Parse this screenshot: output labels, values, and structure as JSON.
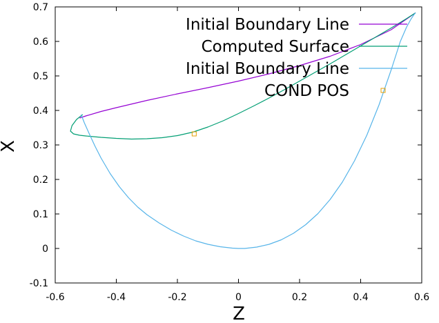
{
  "chart_data": {
    "type": "line",
    "xlabel": "Z",
    "ylabel": "X",
    "xlim": [
      -0.6,
      0.6
    ],
    "ylim": [
      -0.1,
      0.7
    ],
    "xticks": [
      "-0.6",
      "-0.4",
      "-0.2",
      "0",
      "0.2",
      "0.4",
      "0.6"
    ],
    "yticks": [
      "-0.1",
      "0",
      "0.1",
      "0.2",
      "0.3",
      "0.4",
      "0.5",
      "0.6",
      "0.7"
    ],
    "grid": false,
    "legend_position": "top-right",
    "series": [
      {
        "name": "Initial Boundary Line",
        "color": "#9400d3",
        "kind": "line",
        "x": [
          -0.52,
          -0.5,
          -0.45,
          -0.4,
          -0.3,
          -0.2,
          -0.1,
          0.0,
          0.1,
          0.2,
          0.3,
          0.4,
          0.5,
          0.58
        ],
        "y": [
          0.378,
          0.384,
          0.397,
          0.408,
          0.429,
          0.448,
          0.466,
          0.485,
          0.506,
          0.53,
          0.557,
          0.591,
          0.634,
          0.683
        ]
      },
      {
        "name": "Computed Surface",
        "color": "#009e73",
        "kind": "line",
        "x": [
          -0.51,
          -0.53,
          -0.545,
          -0.55,
          -0.54,
          -0.52,
          -0.5,
          -0.45,
          -0.4,
          -0.35,
          -0.3,
          -0.25,
          -0.2,
          -0.15,
          -0.1,
          -0.05,
          0.0,
          0.05,
          0.1,
          0.15,
          0.2,
          0.25,
          0.3,
          0.35,
          0.4,
          0.45,
          0.5,
          0.55,
          0.58
        ],
        "y": [
          0.388,
          0.374,
          0.356,
          0.34,
          0.332,
          0.328,
          0.326,
          0.322,
          0.319,
          0.317,
          0.318,
          0.321,
          0.327,
          0.337,
          0.352,
          0.37,
          0.391,
          0.413,
          0.436,
          0.46,
          0.485,
          0.51,
          0.535,
          0.561,
          0.587,
          0.613,
          0.639,
          0.666,
          0.683
        ]
      },
      {
        "name": "Initial Boundary Line",
        "color": "#56b4e9",
        "kind": "line",
        "x": [
          -0.515,
          -0.505,
          -0.49,
          -0.47,
          -0.45,
          -0.42,
          -0.39,
          -0.36,
          -0.33,
          -0.3,
          -0.26,
          -0.22,
          -0.18,
          -0.14,
          -0.1,
          -0.06,
          -0.02,
          0.0,
          0.02,
          0.06,
          0.1,
          0.14,
          0.18,
          0.22,
          0.26,
          0.3,
          0.34,
          0.38,
          0.42,
          0.46,
          0.5,
          0.53,
          0.55,
          0.565,
          0.575,
          0.58
        ],
        "y": [
          0.388,
          0.365,
          0.335,
          0.297,
          0.262,
          0.217,
          0.179,
          0.147,
          0.12,
          0.098,
          0.074,
          0.053,
          0.036,
          0.022,
          0.012,
          0.005,
          0.001,
          0.0,
          0.0,
          0.004,
          0.012,
          0.025,
          0.044,
          0.069,
          0.101,
          0.142,
          0.192,
          0.254,
          0.328,
          0.416,
          0.518,
          0.6,
          0.641,
          0.665,
          0.678,
          0.683
        ]
      },
      {
        "name": "COND POS",
        "color": "#e69f00",
        "kind": "points",
        "x": [
          -0.145
        ],
        "y": [
          0.332
        ]
      }
    ]
  }
}
